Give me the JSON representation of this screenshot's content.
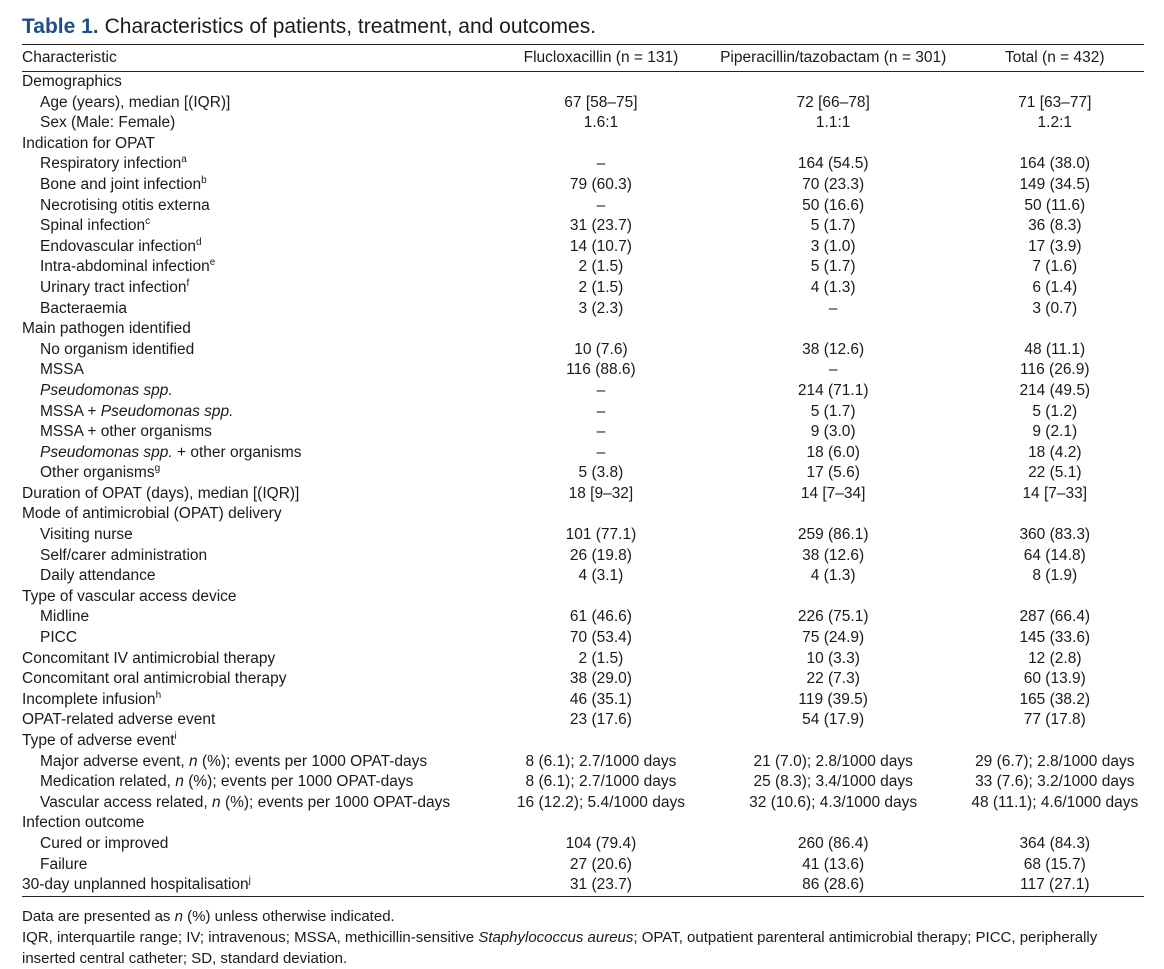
{
  "caption": {
    "label": "Table 1.",
    "text": "Characteristics of patients, treatment, and outcomes."
  },
  "header": {
    "c0": "Characteristic",
    "c1": "Flucloxacillin (n = 131)",
    "c2": "Piperacillin/tazobactam (n = 301)",
    "c3": "Total (n = 432)"
  },
  "rows": [
    {
      "label": "Demographics",
      "indent": false,
      "v": [
        "",
        "",
        ""
      ]
    },
    {
      "label": "Age (years), median [(IQR)]",
      "indent": true,
      "v": [
        "67 [58–75]",
        "72 [66–78]",
        "71 [63–77]"
      ]
    },
    {
      "label": "Sex (Male: Female)",
      "indent": true,
      "v": [
        "1.6:1",
        "1.1:1",
        "1.2:1"
      ]
    },
    {
      "label": "Indication for OPAT",
      "indent": false,
      "v": [
        "",
        "",
        ""
      ]
    },
    {
      "label": "Respiratory infection",
      "sup": "a",
      "indent": true,
      "v": [
        "–",
        "164 (54.5)",
        "164 (38.0)"
      ]
    },
    {
      "label": "Bone and joint infection",
      "sup": "b",
      "indent": true,
      "v": [
        "79 (60.3)",
        "70 (23.3)",
        "149 (34.5)"
      ]
    },
    {
      "label": "Necrotising otitis externa",
      "indent": true,
      "v": [
        "–",
        "50 (16.6)",
        "50 (11.6)"
      ]
    },
    {
      "label": "Spinal infection",
      "sup": "c",
      "indent": true,
      "v": [
        "31 (23.7)",
        "5 (1.7)",
        "36 (8.3)"
      ]
    },
    {
      "label": "Endovascular infection",
      "sup": "d",
      "indent": true,
      "v": [
        "14 (10.7)",
        "3 (1.0)",
        "17 (3.9)"
      ]
    },
    {
      "label": "Intra-abdominal infection",
      "sup": "e",
      "indent": true,
      "v": [
        "2 (1.5)",
        "5 (1.7)",
        "7 (1.6)"
      ]
    },
    {
      "label": "Urinary tract infection",
      "sup": "f",
      "indent": true,
      "v": [
        "2 (1.5)",
        "4 (1.3)",
        "6 (1.4)"
      ]
    },
    {
      "label": "Bacteraemia",
      "indent": true,
      "v": [
        "3 (2.3)",
        "–",
        "3 (0.7)"
      ]
    },
    {
      "label": "Main pathogen identified",
      "indent": false,
      "v": [
        "",
        "",
        ""
      ]
    },
    {
      "label": "No organism identified",
      "indent": true,
      "v": [
        "10 (7.6)",
        "38 (12.6)",
        "48 (11.1)"
      ]
    },
    {
      "label": "MSSA",
      "indent": true,
      "v": [
        "116 (88.6)",
        "–",
        "116 (26.9)"
      ]
    },
    {
      "label": "",
      "italic": "Pseudomonas spp.",
      "indent": true,
      "v": [
        "–",
        "214 (71.1)",
        "214 (49.5)"
      ]
    },
    {
      "label": "MSSA + ",
      "italic": "Pseudomonas spp.",
      "indent": true,
      "v": [
        "–",
        "5 (1.7)",
        "5 (1.2)"
      ]
    },
    {
      "label": "MSSA + other organisms",
      "indent": true,
      "v": [
        "–",
        "9 (3.0)",
        "9 (2.1)"
      ]
    },
    {
      "label": "",
      "italic": "Pseudomonas spp.",
      "after": " + other organisms",
      "indent": true,
      "v": [
        "–",
        "18 (6.0)",
        "18 (4.2)"
      ]
    },
    {
      "label": "Other organisms",
      "sup": "g",
      "indent": true,
      "v": [
        "5 (3.8)",
        "17 (5.6)",
        "22 (5.1)"
      ]
    },
    {
      "label": "Duration of OPAT (days), median [(IQR)]",
      "indent": false,
      "v": [
        "18 [9–32]",
        "14 [7–34]",
        "14 [7–33]"
      ]
    },
    {
      "label": "Mode of antimicrobial (OPAT) delivery",
      "indent": false,
      "v": [
        "",
        "",
        ""
      ]
    },
    {
      "label": "Visiting nurse",
      "indent": true,
      "v": [
        "101 (77.1)",
        "259 (86.1)",
        "360 (83.3)"
      ]
    },
    {
      "label": "Self/carer administration",
      "indent": true,
      "v": [
        "26 (19.8)",
        "38 (12.6)",
        "64 (14.8)"
      ]
    },
    {
      "label": "Daily attendance",
      "indent": true,
      "v": [
        "4 (3.1)",
        "4 (1.3)",
        "8 (1.9)"
      ]
    },
    {
      "label": "Type of vascular access device",
      "indent": false,
      "v": [
        "",
        "",
        ""
      ]
    },
    {
      "label": "Midline",
      "indent": true,
      "v": [
        "61 (46.6)",
        "226 (75.1)",
        "287 (66.4)"
      ]
    },
    {
      "label": "PICC",
      "indent": true,
      "v": [
        "70 (53.4)",
        "75 (24.9)",
        "145 (33.6)"
      ]
    },
    {
      "label": "Concomitant IV antimicrobial therapy",
      "indent": false,
      "v": [
        "2 (1.5)",
        "10 (3.3)",
        "12 (2.8)"
      ]
    },
    {
      "label": "Concomitant oral antimicrobial therapy",
      "indent": false,
      "v": [
        "38 (29.0)",
        "22 (7.3)",
        "60 (13.9)"
      ]
    },
    {
      "label": "Incomplete infusion",
      "sup": "h",
      "indent": false,
      "v": [
        "46 (35.1)",
        "119 (39.5)",
        "165 (38.2)"
      ]
    },
    {
      "label": "OPAT-related adverse event",
      "indent": false,
      "v": [
        "23 (17.6)",
        "54 (17.9)",
        "77 (17.8)"
      ]
    },
    {
      "label": "Type of adverse event",
      "sup": "i",
      "indent": false,
      "v": [
        "",
        "",
        ""
      ]
    },
    {
      "label": "Major adverse event, ",
      "italic": "n",
      "after": " (%); events per 1000 OPAT-days",
      "indent": true,
      "v": [
        "8 (6.1); 2.7/1000 days",
        "21 (7.0); 2.8/1000 days",
        "29 (6.7); 2.8/1000 days"
      ]
    },
    {
      "label": "Medication related, ",
      "italic": "n",
      "after": " (%); events per 1000 OPAT-days",
      "indent": true,
      "v": [
        "8 (6.1); 2.7/1000 days",
        "25 (8.3); 3.4/1000 days",
        "33 (7.6); 3.2/1000 days"
      ]
    },
    {
      "label": "Vascular access related, ",
      "italic": "n",
      "after": " (%); events per 1000 OPAT-days",
      "indent": true,
      "v": [
        "16 (12.2); 5.4/1000 days",
        "32 (10.6); 4.3/1000 days",
        "48 (11.1); 4.6/1000 days"
      ]
    },
    {
      "label": "Infection outcome",
      "indent": false,
      "v": [
        "",
        "",
        ""
      ]
    },
    {
      "label": "Cured or improved",
      "indent": true,
      "v": [
        "104 (79.4)",
        "260 (86.4)",
        "364 (84.3)"
      ]
    },
    {
      "label": "Failure",
      "indent": true,
      "v": [
        "27 (20.6)",
        "41 (13.6)",
        "68 (15.7)"
      ]
    },
    {
      "label": "30-day unplanned hospitalisation",
      "sup": "j",
      "indent": false,
      "v": [
        "31 (23.7)",
        "86 (28.6)",
        "117 (27.1)"
      ]
    }
  ],
  "notes": {
    "line1_pre": "Data are presented as ",
    "line1_it": "n",
    "line1_post": " (%) unless otherwise indicated.",
    "line2_pre": "IQR, interquartile range; IV; intravenous; MSSA, methicillin-sensitive ",
    "line2_it": "Staphylococcus aureus",
    "line2_post": "; OPAT, outpatient parenteral antimicrobial therapy; PICC, peripherally inserted central catheter; SD, standard deviation."
  }
}
